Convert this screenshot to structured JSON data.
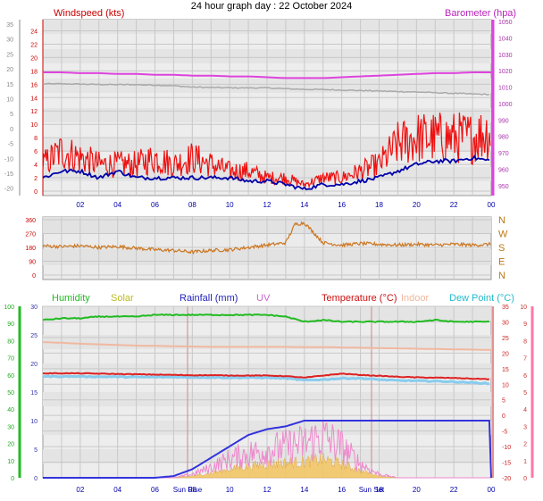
{
  "title": "24 hour graph day : 22 October 2024",
  "colors": {
    "wind": "#ee1111",
    "windDark": "#cc0000",
    "gust": "#ff0000",
    "avgwind": "#0000aa",
    "baro": "#dd44dd",
    "outhum": "#aaaaaa",
    "dir": "#cc7722",
    "humidity": "#22bb22",
    "solar": "#bbbb22",
    "rain": "#3333dd",
    "uv": "#cc66cc",
    "temp": "#dd2222",
    "indoor": "#f0b8a0",
    "dew": "#33cccc",
    "grid": "#c8c8c8",
    "tick": "#0000aa"
  },
  "panels": {
    "top": {
      "left_label": "Windspeed (kts)",
      "right_label": "Barometer (hpa)",
      "outer_left_ticks": [
        "35",
        "30",
        "25",
        "20",
        "15",
        "10",
        "5",
        "0",
        "-5",
        "-10",
        "-15",
        "-20"
      ],
      "left_ticks": [
        "24",
        "22",
        "20",
        "18",
        "16",
        "14",
        "12",
        "10",
        "8",
        "6",
        "4",
        "2",
        "0"
      ],
      "right_ticks": [
        "1050",
        "1040",
        "1030",
        "1020",
        "1010",
        "1000",
        "990",
        "980",
        "970",
        "960",
        "950"
      ],
      "x_ticks": [
        "02",
        "04",
        "06",
        "08",
        "10",
        "12",
        "14",
        "16",
        "18",
        "20",
        "22",
        "00"
      ]
    },
    "middle": {
      "left_ticks": [
        "360",
        "270",
        "180",
        "90",
        "0"
      ],
      "right_ticks": [
        "N",
        "W",
        "S",
        "E",
        "N"
      ]
    },
    "bottom": {
      "labels": {
        "humidity": "Humidity",
        "solar": "Solar",
        "rain": "Rainfall (mm)",
        "uv": "UV",
        "temp": "Temperature (°C)",
        "indoor": "Indoor",
        "dew": "Dew Point (°C)"
      },
      "hum_ticks": [
        "100",
        "90",
        "80",
        "70",
        "60",
        "50",
        "40",
        "30",
        "20",
        "10",
        "0"
      ],
      "rain_ticks": [
        "30",
        "25",
        "20",
        "15",
        "10",
        "5",
        "0"
      ],
      "temp_ticks": [
        "35",
        "30",
        "25",
        "20",
        "15",
        "10",
        "5",
        "0",
        "-5",
        "-10",
        "-15",
        "-20"
      ],
      "uv_ticks": [
        "10",
        "9",
        "8",
        "7",
        "6",
        "5",
        "4",
        "3",
        "2",
        "1",
        "0"
      ],
      "x_ticks": [
        "02",
        "04",
        "06",
        "08",
        "10",
        "12",
        "14",
        "16",
        "18",
        "20",
        "22",
        "00"
      ],
      "sunrise": "Sun Rise",
      "sunset": "Sun Set"
    }
  },
  "chart_data": [
    {
      "type": "line",
      "title": "24 hour graph day : 22 October 2024",
      "ylabel": "Windspeed (kts)",
      "y2label": "Barometer (hpa)",
      "ylim": [
        0,
        25
      ],
      "y2lim": [
        945,
        1050
      ],
      "x_hours": [
        0,
        1,
        2,
        3,
        4,
        5,
        6,
        7,
        8,
        9,
        10,
        11,
        12,
        13,
        14,
        15,
        16,
        17,
        18,
        19,
        20,
        21,
        22,
        23,
        24
      ],
      "series": [
        {
          "name": "Windspeed (kts)",
          "values": [
            4,
            6,
            5,
            4,
            4,
            4,
            5,
            4,
            5,
            4,
            3,
            3,
            2,
            2,
            1,
            2,
            2,
            3,
            4,
            7,
            8,
            8,
            8,
            8,
            9
          ]
        },
        {
          "name": "",
          "values": [
            2,
            3,
            3,
            2,
            3,
            2,
            2,
            2,
            2,
            2,
            2,
            1.5,
            1.5,
            1,
            0.3,
            1,
            1,
            1.5,
            2,
            3,
            4,
            4.5,
            4.5,
            5,
            4.5
          ]
        },
        {
          "name": "Barometer (hpa)",
          "values": [
            1019,
            1019,
            1018.5,
            1018.5,
            1018,
            1018,
            1017.5,
            1017.5,
            1017,
            1017,
            1016.5,
            1016.5,
            1016,
            1015.5,
            1015.5,
            1015.5,
            1016,
            1016.5,
            1017,
            1017.5,
            1018,
            1018.5,
            1018.5,
            1019,
            1019
          ]
        },
        {
          "name": "",
          "values": [
            1012,
            1012,
            1011.8,
            1011.6,
            1011.5,
            1011.5,
            1011.2,
            1010.8,
            1010,
            1009.8,
            1009.6,
            1009.5,
            1009.5,
            1009,
            1008.6,
            1008.5,
            1008.2,
            1007.9,
            1007.6,
            1007.3,
            1007,
            1006.6,
            1006.2,
            1005.8,
            1005.5
          ]
        }
      ]
    },
    {
      "type": "line",
      "ylim": [
        0,
        360
      ],
      "x_hours": [
        0,
        1,
        2,
        3,
        4,
        5,
        6,
        7,
        8,
        9,
        10,
        11,
        12,
        13,
        13.5,
        14,
        15,
        16,
        17,
        18,
        19,
        20,
        21,
        22,
        23,
        24
      ],
      "series": [
        {
          "name": "",
          "values": [
            190,
            185,
            190,
            180,
            185,
            175,
            165,
            160,
            150,
            160,
            165,
            180,
            195,
            210,
            330,
            340,
            210,
            195,
            205,
            200,
            195,
            200,
            195,
            200,
            195,
            200
          ]
        }
      ]
    },
    {
      "type": "line",
      "ylim_left": [
        0,
        100
      ],
      "ylim_rain": [
        0,
        30
      ],
      "ylim_temp": [
        -20,
        35
      ],
      "ylim_uv": [
        0,
        10
      ],
      "x_hours": [
        0,
        1,
        2,
        3,
        4,
        5,
        6,
        7,
        8,
        9,
        10,
        11,
        12,
        13,
        14,
        15,
        16,
        17,
        18,
        19,
        20,
        21,
        22,
        23,
        24
      ],
      "series": [
        {
          "name": "Humidity",
          "values": [
            92,
            93,
            93,
            94,
            94,
            94,
            95,
            95,
            95,
            95,
            95,
            95,
            95,
            94,
            91,
            92,
            91,
            91,
            91,
            91,
            91,
            92,
            91,
            91,
            91
          ]
        },
        {
          "name": "Temperature (°C)",
          "values": [
            13.5,
            13.5,
            13.5,
            13.4,
            13.3,
            13.2,
            13.1,
            13,
            12.9,
            12.9,
            12.8,
            12.8,
            12.8,
            12.6,
            12.1,
            12.8,
            13.4,
            13,
            12.7,
            12.4,
            12.2,
            12.1,
            12,
            11.8,
            11.6
          ]
        },
        {
          "name": "Dew Point (°C)",
          "values": [
            12.5,
            12.5,
            12.5,
            12.4,
            12.4,
            12.3,
            12.3,
            12.3,
            12.2,
            12.2,
            12.1,
            12.1,
            12.1,
            11.9,
            11.3,
            11.5,
            11.9,
            11.9,
            11.5,
            11.2,
            11.1,
            11,
            10.8,
            10.5,
            10.2
          ]
        },
        {
          "name": "Indoor",
          "values": [
            23.5,
            23.3,
            23,
            22.8,
            22.6,
            22.4,
            22.3,
            22.2,
            22.1,
            22,
            22,
            22,
            22,
            22,
            21.9,
            21.9,
            21.8,
            21.7,
            21.6,
            21.5,
            21.4,
            21.3,
            21.2,
            21.1,
            21
          ]
        },
        {
          "name": "Rainfall (mm)",
          "values": [
            0,
            0,
            0,
            0,
            0,
            0,
            0,
            0.3,
            1.5,
            3.5,
            5.5,
            7.5,
            8.5,
            9,
            10,
            10,
            10,
            10,
            10,
            10,
            10,
            10,
            10,
            10,
            10
          ]
        },
        {
          "name": "Solar",
          "values": [
            0,
            0,
            0,
            0,
            0,
            0,
            0,
            0,
            0.3,
            0.8,
            1.5,
            2,
            2.4,
            2.6,
            2.8,
            3.2,
            2.4,
            1.2,
            0.4,
            0,
            0,
            0,
            0,
            0,
            0
          ]
        },
        {
          "name": "UV",
          "values": [
            0,
            0,
            0,
            0,
            0,
            0,
            0,
            0,
            0.2,
            0.6,
            1.1,
            1.4,
            1.6,
            1.8,
            2,
            2.4,
            1.8,
            0.8,
            0.2,
            0,
            0,
            0,
            0,
            0,
            0
          ]
        }
      ]
    }
  ]
}
